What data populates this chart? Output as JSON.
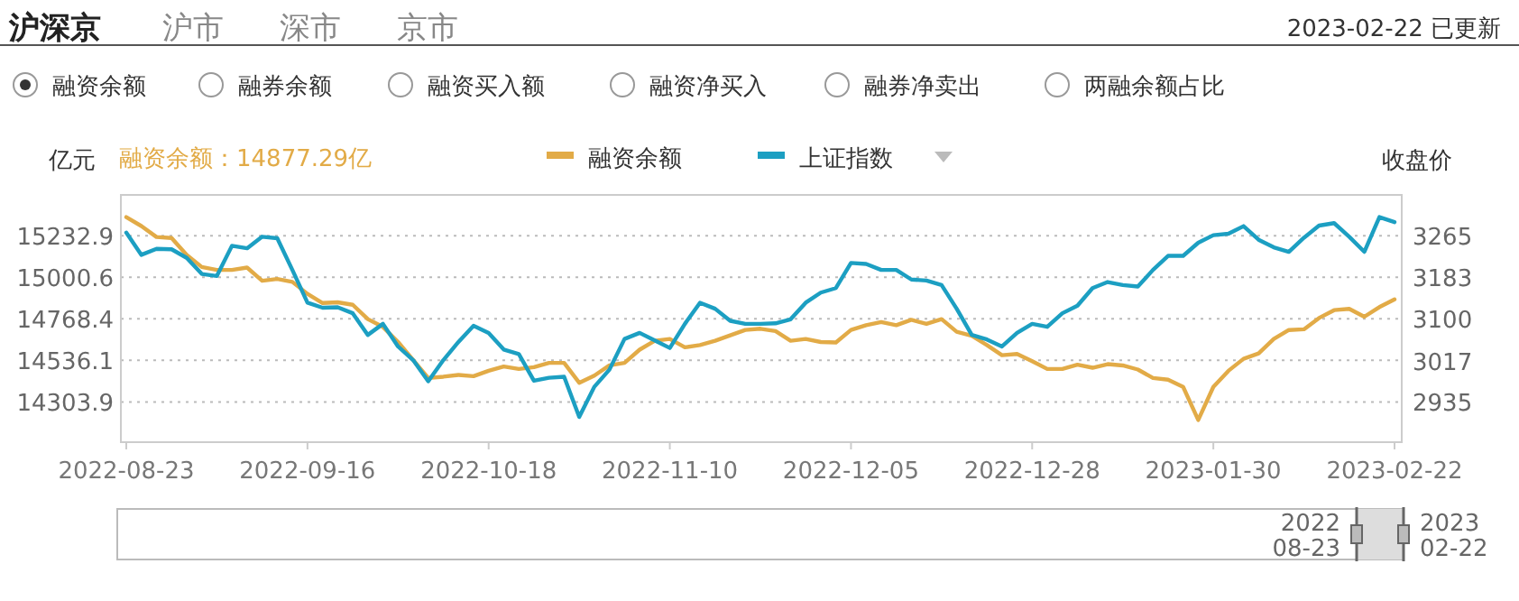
{
  "chart_data": {
    "type": "line",
    "ylabel": "亿元",
    "y2label": "收盘价",
    "legend": "top",
    "grid": "y",
    "annotations": [
      "沪深京",
      "沪市",
      "深市",
      "京市",
      "2023-02-22 已更新",
      "融资余额",
      "融券余额",
      "融资买入额",
      "融资净买入",
      "融券净卖出",
      "两融余额占比",
      "融资余额：14877.29亿",
      "2022",
      "08-23",
      "2023",
      "02-22"
    ],
    "categories": [
      "2022-08-23",
      null,
      null,
      null,
      null,
      null,
      null,
      null,
      null,
      null,
      null,
      null,
      "2022-09-16",
      null,
      null,
      null,
      null,
      null,
      null,
      null,
      null,
      null,
      null,
      null,
      "2022-10-18",
      null,
      null,
      null,
      null,
      null,
      null,
      null,
      null,
      null,
      null,
      null,
      "2022-11-10",
      null,
      null,
      null,
      null,
      null,
      null,
      null,
      null,
      null,
      null,
      null,
      "2022-12-05",
      null,
      null,
      null,
      null,
      null,
      null,
      null,
      null,
      null,
      null,
      null,
      "2022-12-28",
      null,
      null,
      null,
      null,
      null,
      null,
      null,
      null,
      null,
      null,
      null,
      "2023-01-30",
      null,
      null,
      null,
      null,
      null,
      null,
      null,
      null,
      null,
      null,
      null,
      "2023-02-22"
    ],
    "ylim": [
      14079,
      15461
    ],
    "yticks": [
      14303.9,
      14536.1,
      14768.4,
      15000.6,
      15232.9
    ],
    "y2lim": [
      2855,
      3346
    ],
    "y2ticks": [
      2935,
      3017,
      3100,
      3183,
      3265
    ],
    "series": [
      {
        "name": "融资余额",
        "color": "#e2ab47",
        "values": [
          15337,
          15287,
          15226,
          15220,
          15126,
          15058,
          15042,
          15042,
          15055,
          14981,
          14991,
          14975,
          14908,
          14857,
          14861,
          14847,
          14767,
          14723,
          14639,
          14539,
          14438,
          14445,
          14455,
          14448,
          14478,
          14502,
          14488,
          14498,
          14522,
          14522,
          14411,
          14451,
          14508,
          14522,
          14596,
          14646,
          14656,
          14609,
          14622,
          14646,
          14676,
          14706,
          14713,
          14700,
          14646,
          14656,
          14639,
          14636,
          14706,
          14733,
          14750,
          14733,
          14763,
          14740,
          14767,
          14696,
          14673,
          14622,
          14565,
          14572,
          14532,
          14488,
          14488,
          14512,
          14495,
          14515,
          14508,
          14485,
          14438,
          14428,
          14388,
          14203,
          14388,
          14478,
          14545,
          14575,
          14656,
          14706,
          14710,
          14773,
          14817,
          14824,
          14780,
          14834,
          14877
        ]
      },
      {
        "name": "上证指数",
        "color": "#1c9fc2",
        "axis": "y2",
        "values": [
          3271,
          3227,
          3239,
          3238,
          3221,
          3189,
          3185,
          3245,
          3240,
          3263,
          3260,
          3197,
          3132,
          3122,
          3123,
          3111,
          3068,
          3090,
          3045,
          3018,
          2976,
          3018,
          3054,
          3086,
          3072,
          3039,
          3030,
          2977,
          2983,
          2985,
          2905,
          2965,
          2999,
          3060,
          3072,
          3057,
          3042,
          3090,
          3132,
          3120,
          3096,
          3090,
          3090,
          3091,
          3099,
          3132,
          3152,
          3161,
          3211,
          3209,
          3197,
          3197,
          3178,
          3176,
          3167,
          3120,
          3068,
          3059,
          3045,
          3072,
          3090,
          3084,
          3111,
          3126,
          3161,
          3173,
          3167,
          3164,
          3197,
          3225,
          3225,
          3251,
          3266,
          3269,
          3284,
          3257,
          3242,
          3233,
          3261,
          3285,
          3290,
          3263,
          3233,
          3302,
          3292
        ]
      }
    ]
  }
}
